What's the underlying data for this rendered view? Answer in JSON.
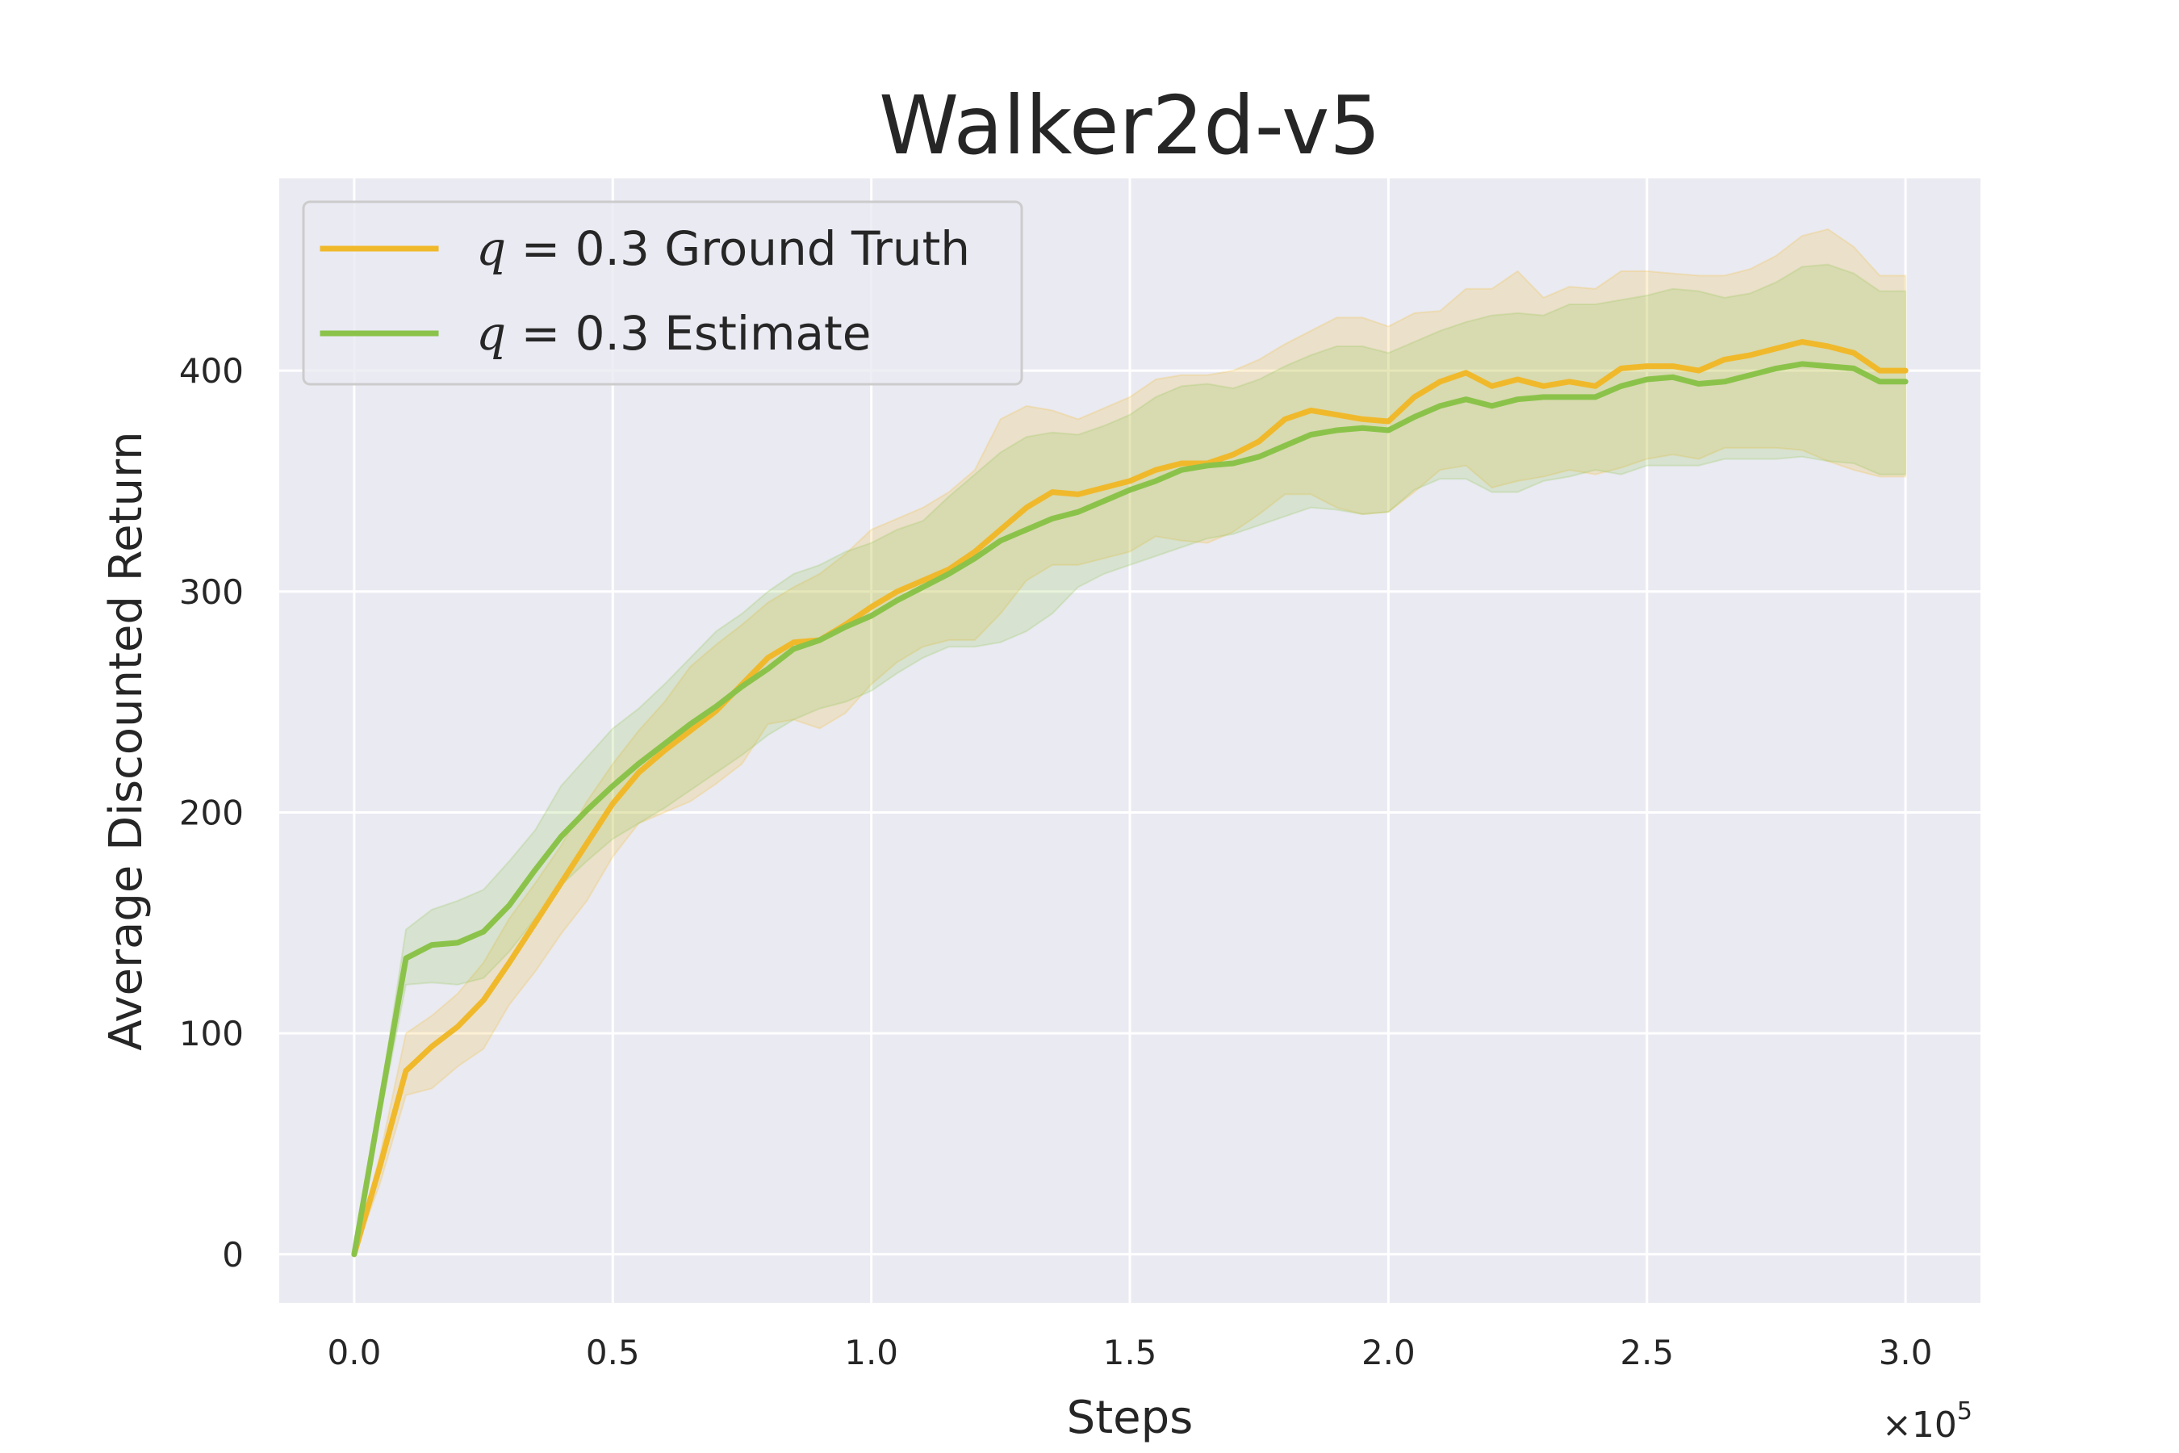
{
  "chart_data": {
    "type": "line",
    "title": "Walker2d-v5",
    "xlabel": "Steps",
    "ylabel": "Average Discounted Return",
    "x_multiplier_base": "×10",
    "x_multiplier_exp": "5",
    "xlim": [
      -0.145,
      3.145
    ],
    "ylim": [
      -22,
      487
    ],
    "xticks": [
      0.0,
      0.5,
      1.0,
      1.5,
      2.0,
      2.5,
      3.0
    ],
    "xtick_labels": [
      "0.0",
      "0.5",
      "1.0",
      "1.5",
      "2.0",
      "2.5",
      "3.0"
    ],
    "yticks": [
      0,
      100,
      200,
      300,
      400
    ],
    "ytick_labels": [
      "0",
      "100",
      "200",
      "300",
      "400"
    ],
    "grid": true,
    "legend_position": "top-left",
    "x": [
      0.0,
      0.05,
      0.1,
      0.15,
      0.2,
      0.25,
      0.3,
      0.35,
      0.4,
      0.45,
      0.5,
      0.55,
      0.6,
      0.65,
      0.7,
      0.75,
      0.8,
      0.85,
      0.9,
      0.95,
      1.0,
      1.05,
      1.1,
      1.15,
      1.2,
      1.25,
      1.3,
      1.35,
      1.4,
      1.45,
      1.5,
      1.55,
      1.6,
      1.65,
      1.7,
      1.75,
      1.8,
      1.85,
      1.9,
      1.95,
      2.0,
      2.05,
      2.1,
      2.15,
      2.2,
      2.25,
      2.3,
      2.35,
      2.4,
      2.45,
      2.5,
      2.55,
      2.6,
      2.65,
      2.7,
      2.75,
      2.8,
      2.85,
      2.9,
      2.95,
      3.0
    ],
    "series": [
      {
        "name": "q = 0.3 Ground Truth",
        "legend_var": "q",
        "legend_rest": " = 0.3 Ground Truth",
        "color": "#f0b92b",
        "values": [
          0,
          40,
          83,
          94,
          103,
          115,
          132,
          150,
          168,
          186,
          204,
          218,
          228,
          237,
          246,
          258,
          270,
          277,
          278,
          285,
          293,
          300,
          305,
          310,
          318,
          328,
          338,
          345,
          344,
          347,
          350,
          355,
          358,
          358,
          362,
          368,
          378,
          382,
          380,
          378,
          377,
          388,
          395,
          399,
          393,
          396,
          393,
          395,
          393,
          401,
          402,
          402,
          400,
          405,
          407,
          410,
          413,
          411,
          408,
          400,
          400
        ],
        "upper": [
          0,
          45,
          100,
          108,
          118,
          132,
          152,
          168,
          185,
          205,
          222,
          237,
          250,
          266,
          276,
          285,
          295,
          302,
          308,
          317,
          328,
          333,
          338,
          345,
          355,
          378,
          384,
          382,
          378,
          383,
          388,
          396,
          398,
          398,
          400,
          405,
          412,
          418,
          424,
          424,
          420,
          426,
          427,
          437,
          437,
          445,
          433,
          438,
          437,
          445,
          445,
          444,
          443,
          443,
          446,
          452,
          461,
          464,
          456,
          443,
          443
        ],
        "lower": [
          0,
          32,
          72,
          75,
          85,
          93,
          113,
          128,
          145,
          160,
          180,
          195,
          200,
          205,
          213,
          222,
          240,
          242,
          238,
          245,
          258,
          268,
          275,
          278,
          278,
          290,
          305,
          312,
          312,
          315,
          318,
          325,
          323,
          322,
          327,
          335,
          344,
          344,
          338,
          335,
          336,
          345,
          355,
          357,
          347,
          350,
          352,
          355,
          353,
          356,
          360,
          362,
          360,
          365,
          365,
          365,
          364,
          359,
          355,
          352,
          352
        ]
      },
      {
        "name": "q = 0.3 Estimate",
        "legend_var": "q",
        "legend_rest": " = 0.3 Estimate",
        "color": "#8bc34a",
        "values": [
          0,
          67,
          134,
          140,
          141,
          146,
          158,
          174,
          189,
          201,
          212,
          222,
          231,
          240,
          248,
          257,
          265,
          274,
          278,
          284,
          289,
          296,
          302,
          308,
          315,
          323,
          328,
          333,
          336,
          341,
          346,
          350,
          355,
          357,
          358,
          361,
          366,
          371,
          373,
          374,
          373,
          379,
          384,
          387,
          384,
          387,
          388,
          388,
          388,
          393,
          396,
          397,
          394,
          395,
          398,
          401,
          403,
          402,
          401,
          395,
          395
        ],
        "upper": [
          0,
          70,
          147,
          156,
          160,
          165,
          178,
          192,
          212,
          225,
          238,
          247,
          258,
          270,
          282,
          290,
          300,
          308,
          312,
          318,
          322,
          328,
          332,
          343,
          353,
          363,
          370,
          372,
          371,
          375,
          380,
          388,
          393,
          394,
          392,
          396,
          402,
          407,
          411,
          411,
          408,
          413,
          418,
          422,
          425,
          426,
          425,
          430,
          430,
          432,
          434,
          437,
          436,
          433,
          435,
          440,
          447,
          448,
          444,
          436,
          436
        ],
        "lower": [
          0,
          62,
          122,
          123,
          122,
          125,
          137,
          152,
          167,
          178,
          188,
          195,
          202,
          210,
          218,
          226,
          235,
          242,
          247,
          250,
          255,
          263,
          270,
          275,
          275,
          277,
          282,
          290,
          302,
          308,
          312,
          316,
          320,
          324,
          326,
          330,
          334,
          338,
          337,
          335,
          336,
          346,
          351,
          351,
          345,
          345,
          350,
          352,
          355,
          353,
          357,
          357,
          357,
          360,
          360,
          360,
          361,
          359,
          358,
          353,
          353
        ]
      }
    ]
  }
}
